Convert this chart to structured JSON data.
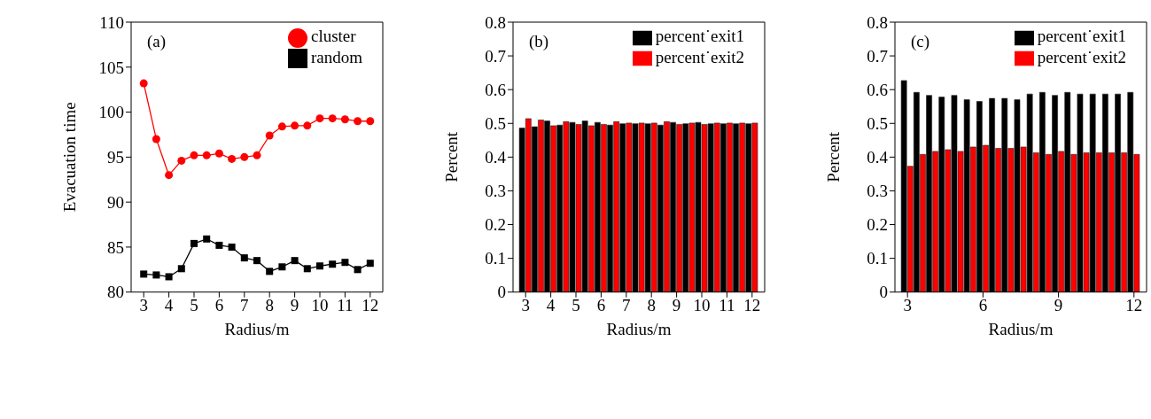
{
  "chart_data": [
    {
      "type": "line",
      "annotations": [
        "(a)"
      ],
      "xlabel": "Radius/m",
      "ylabel": "Evacuation time",
      "x": [
        3,
        3.5,
        4,
        4.5,
        5,
        5.5,
        6,
        6.5,
        7,
        7.5,
        8,
        8.5,
        9,
        9.5,
        10,
        10.5,
        11,
        11.5,
        12
      ],
      "xlim": [
        2.5,
        12.5
      ],
      "xticks": [
        3,
        4,
        5,
        6,
        7,
        8,
        9,
        10,
        11,
        12
      ],
      "ylim": [
        80,
        110
      ],
      "yticks": [
        80,
        85,
        90,
        95,
        100,
        105,
        110
      ],
      "legend": "top right",
      "series": [
        {
          "name": "random",
          "color": "#000000",
          "marker": "square",
          "values": [
            82.0,
            81.9,
            81.7,
            82.6,
            85.4,
            85.9,
            85.2,
            85.0,
            83.8,
            83.5,
            82.3,
            82.8,
            83.5,
            82.6,
            82.9,
            83.1,
            83.3,
            82.5,
            83.2
          ]
        },
        {
          "name": "cluster",
          "color": "#ff0000",
          "marker": "circle",
          "values": [
            103.2,
            97.0,
            93.0,
            94.6,
            95.2,
            95.2,
            95.4,
            94.8,
            95.0,
            95.2,
            97.4,
            98.4,
            98.5,
            98.5,
            99.3,
            99.3,
            99.2,
            99.0,
            99.0
          ]
        }
      ]
    },
    {
      "type": "bar",
      "annotations": [
        "(b)"
      ],
      "xlabel": "Radius/m",
      "ylabel": "Percent",
      "x": [
        3,
        3.5,
        4,
        4.5,
        5,
        5.5,
        6,
        6.5,
        7,
        7.5,
        8,
        8.5,
        9,
        9.5,
        10,
        10.5,
        11,
        11.5,
        12
      ],
      "xlim": [
        2.5,
        12.5
      ],
      "xticks": [
        3,
        4,
        5,
        6,
        7,
        8,
        9,
        10,
        11,
        12
      ],
      "ylim": [
        0,
        0.8
      ],
      "yticks": [
        0,
        0.1,
        0.2,
        0.3,
        0.4,
        0.5,
        0.6,
        0.7,
        0.8
      ],
      "legend": "top right",
      "series": [
        {
          "name": "percent˙exit1",
          "color": "#000000",
          "values": [
            0.486,
            0.49,
            0.507,
            0.495,
            0.503,
            0.507,
            0.503,
            0.495,
            0.499,
            0.499,
            0.499,
            0.495,
            0.503,
            0.499,
            0.503,
            0.499,
            0.499,
            0.499,
            0.499
          ]
        },
        {
          "name": "percent˙exit2",
          "color": "#ff0000",
          "values": [
            0.514,
            0.51,
            0.493,
            0.505,
            0.497,
            0.493,
            0.497,
            0.505,
            0.501,
            0.501,
            0.501,
            0.505,
            0.497,
            0.501,
            0.497,
            0.501,
            0.501,
            0.501,
            0.501
          ]
        }
      ]
    },
    {
      "type": "bar",
      "annotations": [
        "(c)"
      ],
      "xlabel": "Radius/m",
      "ylabel": "Percent",
      "x": [
        3,
        3.5,
        4,
        4.5,
        5,
        5.5,
        6,
        6.5,
        7,
        7.5,
        8,
        8.5,
        9,
        9.5,
        10,
        10.5,
        11,
        11.5,
        12
      ],
      "xlim": [
        2.5,
        12.5
      ],
      "xticks": [
        3,
        6,
        9,
        12
      ],
      "ylim": [
        0,
        0.8
      ],
      "yticks": [
        0,
        0.1,
        0.2,
        0.3,
        0.4,
        0.5,
        0.6,
        0.7,
        0.8
      ],
      "legend": "top right",
      "series": [
        {
          "name": "percent˙exit1",
          "color": "#000000",
          "values": [
            0.627,
            0.592,
            0.583,
            0.578,
            0.583,
            0.57,
            0.565,
            0.574,
            0.574,
            0.57,
            0.587,
            0.592,
            0.583,
            0.592,
            0.587,
            0.587,
            0.587,
            0.587,
            0.592
          ]
        },
        {
          "name": "percent˙exit2",
          "color": "#ff0000",
          "values": [
            0.373,
            0.408,
            0.417,
            0.422,
            0.417,
            0.43,
            0.435,
            0.426,
            0.426,
            0.43,
            0.413,
            0.408,
            0.417,
            0.408,
            0.413,
            0.413,
            0.413,
            0.413,
            0.408
          ]
        }
      ]
    }
  ]
}
